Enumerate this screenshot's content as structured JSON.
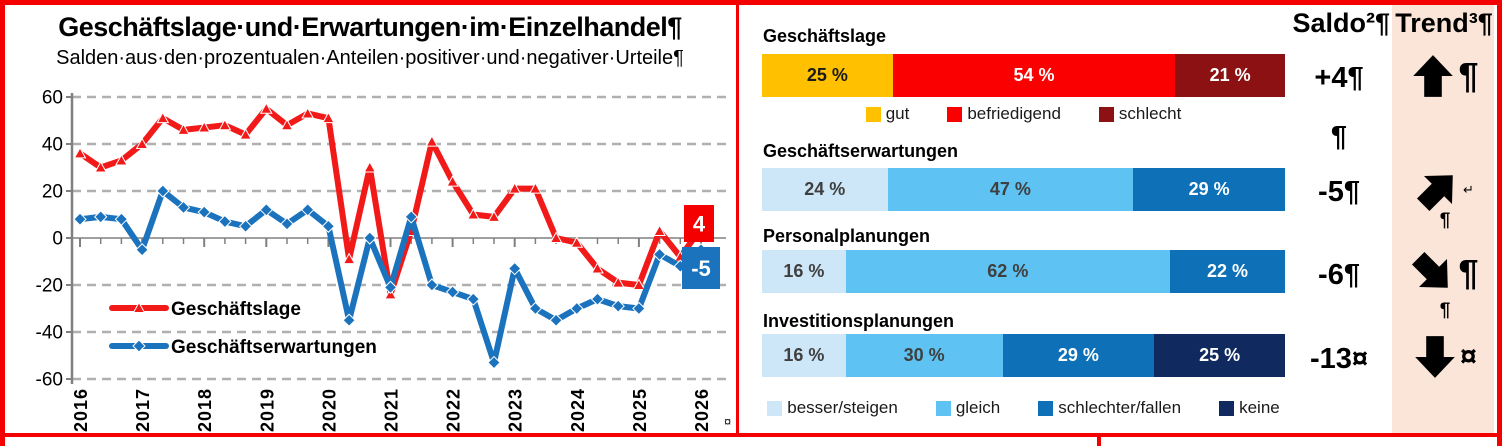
{
  "window": {
    "background": "#ffffff",
    "border_color": "#f40000"
  },
  "left": {
    "title": "Geschäftslage·und·Erwartungen·im·Einzelhandel¶",
    "subtitle": "Salden·aus·den·prozentualen·Anteilen·positiver·und·negativer·Urteile¶",
    "cell_end_mark": "¤"
  },
  "right": {
    "saldo_header": "Saldo²¶",
    "trend_header": "Trend³¶",
    "saldo_empty_line": "¶",
    "trend_column_bg": "#fbe5d8"
  },
  "chart_data": [
    {
      "type": "line",
      "title": "Geschäftslage und Erwartungen im Einzelhandel",
      "subtitle": "Salden aus den prozentualen Anteilen positiver und negativer Urteile",
      "x_tick_labels": [
        "2016",
        "2017",
        "2018",
        "2019",
        "2020",
        "2021",
        "2022",
        "2023",
        "2024",
        "2025",
        "2026"
      ],
      "surveys_per_year": 3,
      "ylim": [
        -60,
        60
      ],
      "yticks": [
        60,
        40,
        20,
        0,
        -20,
        -40,
        -60
      ],
      "grid": "horizontal dashed",
      "legend_position": "inside-left-middle",
      "series": [
        {
          "name": "Geschäftslage",
          "color": "#f21a19",
          "marker": "triangle",
          "end_label": "4",
          "end_label_bg": "#f40000",
          "values": [
            36,
            30,
            33,
            40,
            51,
            46,
            47,
            48,
            44,
            55,
            48,
            53,
            51,
            -9,
            30,
            -24,
            3,
            41,
            24,
            10,
            9,
            21,
            21,
            0,
            -2,
            -13,
            -19,
            -20,
            3,
            -8,
            4
          ]
        },
        {
          "name": "Geschäftserwartungen",
          "color": "#1b73be",
          "marker": "diamond",
          "end_label": "-5",
          "end_label_bg": "#1b73be",
          "values": [
            8,
            9,
            8,
            -5,
            20,
            13,
            11,
            7,
            5,
            12,
            6,
            12,
            5,
            -35,
            0,
            -21,
            9,
            -20,
            -23,
            -26,
            -53,
            -13,
            -30,
            -35,
            -30,
            -26,
            -29,
            -30,
            -7,
            -12,
            -5
          ]
        }
      ]
    },
    {
      "type": "bar",
      "subtype": "horizontal-stacked",
      "unit": "%",
      "rows": [
        {
          "label": "Geschäftslage",
          "segments": [
            {
              "value": 25,
              "color": "#ffc000",
              "text_color": "#1a1a1a"
            },
            {
              "value": 54,
              "color": "#fb0000",
              "text_color": "#ffffff"
            },
            {
              "value": 21,
              "color": "#8c1113",
              "text_color": "#ffffff"
            }
          ],
          "saldo": "+4¶",
          "trend_arrow": "up",
          "trend_suffix": "¶",
          "trend_below": ""
        },
        {
          "label": "Geschäftserwartungen",
          "segments": [
            {
              "value": 24,
              "color": "#cee7f8",
              "text_color": "#3f3f3f"
            },
            {
              "value": 47,
              "color": "#5ec2f2",
              "text_color": "#3f3f3f"
            },
            {
              "value": 29,
              "color": "#0e71b8",
              "text_color": "#ffffff"
            }
          ],
          "saldo": "-5¶",
          "trend_arrow": "up-right",
          "trend_suffix": "↵",
          "trend_below": "¶"
        },
        {
          "label": "Personalplanungen",
          "segments": [
            {
              "value": 16,
              "color": "#cee7f8",
              "text_color": "#3f3f3f"
            },
            {
              "value": 62,
              "color": "#5ec2f2",
              "text_color": "#3f3f3f"
            },
            {
              "value": 22,
              "color": "#0e71b8",
              "text_color": "#ffffff"
            }
          ],
          "saldo": "-6¶",
          "trend_arrow": "down-right",
          "trend_suffix": "¶",
          "trend_below": "¶"
        },
        {
          "label": "Investitionsplanungen",
          "segments": [
            {
              "value": 16,
              "color": "#cee7f8",
              "text_color": "#3f3f3f"
            },
            {
              "value": 30,
              "color": "#5ec2f2",
              "text_color": "#3f3f3f"
            },
            {
              "value": 29,
              "color": "#0e71b8",
              "text_color": "#ffffff"
            },
            {
              "value": 25,
              "color": "#10295e",
              "text_color": "#ffffff"
            }
          ],
          "saldo": "-13¤",
          "trend_arrow": "down",
          "trend_suffix": "¤",
          "trend_below": ""
        }
      ],
      "legend_top": [
        {
          "label": "gut",
          "color": "#ffc000"
        },
        {
          "label": "befriedigend",
          "color": "#fb0000"
        },
        {
          "label": "schlecht",
          "color": "#8c1113"
        }
      ],
      "legend_bottom": [
        {
          "label": "besser/steigen",
          "color": "#cee7f8"
        },
        {
          "label": "gleich",
          "color": "#5ec2f2"
        },
        {
          "label": "schlechter/fallen",
          "color": "#0e71b8"
        },
        {
          "label": "keine",
          "color": "#10295e"
        }
      ]
    }
  ]
}
